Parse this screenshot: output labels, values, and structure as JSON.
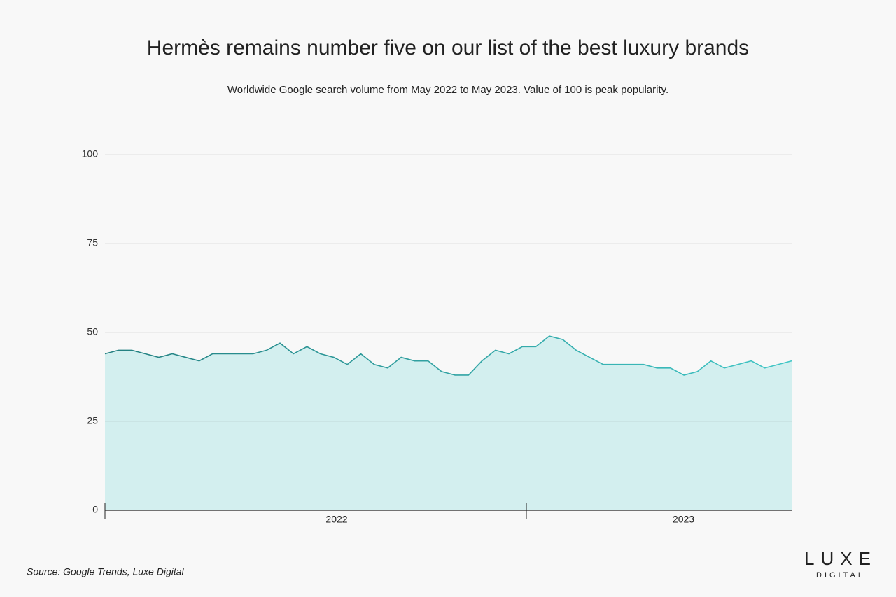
{
  "chart_data": {
    "type": "area",
    "title": "Hermès remains number five on our list of the best luxury brands",
    "subtitle": "Worldwide Google search volume from May 2022 to May 2023. Value of 100 is peak popularity.",
    "categories": [
      null,
      null,
      null,
      null,
      null,
      null,
      null,
      null,
      null,
      null,
      null,
      null,
      null,
      null,
      null,
      null,
      null,
      null,
      null,
      null,
      null,
      null,
      null,
      null,
      null,
      null,
      null,
      null,
      null,
      null,
      null,
      null,
      null,
      null,
      null,
      null,
      null,
      null,
      null,
      null,
      null,
      null,
      null,
      null,
      null,
      null,
      null,
      null,
      null,
      null,
      null,
      null
    ],
    "values": [
      44,
      45,
      45,
      44,
      43,
      44,
      43,
      42,
      44,
      44,
      44,
      44,
      45,
      47,
      44,
      46,
      44,
      43,
      41,
      44,
      41,
      40,
      43,
      42,
      42,
      39,
      38,
      38,
      42,
      45,
      44,
      46,
      46,
      49,
      48,
      45,
      43,
      41,
      41,
      41,
      41,
      40,
      40,
      38,
      39,
      42,
      40,
      41,
      42,
      40,
      41,
      42
    ],
    "x_group_labels": [
      "2022",
      "2023"
    ],
    "colors": [
      "#237f80",
      "#40c6c6"
    ],
    "fill_color": "#d3efef",
    "ylim": [
      0,
      100
    ],
    "yticks": [
      0,
      25,
      50,
      75,
      100
    ],
    "grid": true,
    "source": "Source: Google Trends, Luxe Digital",
    "logo": {
      "top": "LUXE",
      "bottom": "DIGITAL"
    }
  }
}
